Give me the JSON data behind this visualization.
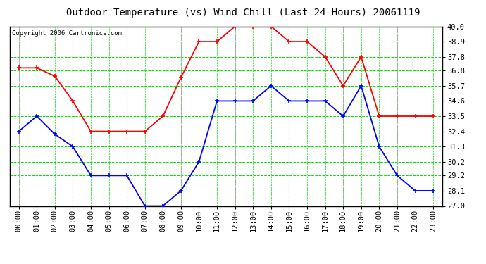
{
  "title": "Outdoor Temperature (vs) Wind Chill (Last 24 Hours) 20061119",
  "copyright": "Copyright 2006 Cartronics.com",
  "hours": [
    "00:00",
    "01:00",
    "02:00",
    "03:00",
    "04:00",
    "05:00",
    "06:00",
    "07:00",
    "08:00",
    "09:00",
    "10:00",
    "11:00",
    "12:00",
    "13:00",
    "14:00",
    "15:00",
    "16:00",
    "17:00",
    "18:00",
    "19:00",
    "20:00",
    "21:00",
    "22:00",
    "23:00"
  ],
  "temp": [
    37.0,
    37.0,
    36.4,
    34.6,
    32.4,
    32.4,
    32.4,
    32.4,
    33.5,
    36.3,
    38.9,
    38.9,
    40.0,
    40.0,
    40.0,
    38.9,
    38.9,
    37.8,
    35.7,
    37.8,
    33.5,
    33.5,
    33.5,
    33.5
  ],
  "windchill": [
    32.4,
    33.5,
    32.2,
    31.3,
    29.2,
    29.2,
    29.2,
    27.0,
    27.0,
    28.1,
    30.2,
    34.6,
    34.6,
    34.6,
    35.7,
    34.6,
    34.6,
    34.6,
    33.5,
    35.7,
    31.3,
    29.2,
    28.1,
    28.1
  ],
  "ylim": [
    27.0,
    40.0
  ],
  "yticks": [
    27.0,
    28.1,
    29.2,
    30.2,
    31.3,
    32.4,
    33.5,
    34.6,
    35.7,
    36.8,
    37.8,
    38.9,
    40.0
  ],
  "temp_color": "#ff0000",
  "windchill_color": "#0000ff",
  "bg_color": "#ffffff",
  "plot_bg_color": "#ffffff",
  "grid_color": "#00dd00",
  "vgrid_color": "#aaaaaa",
  "title_color": "#000000",
  "title_fontsize": 10,
  "copyright_fontsize": 6.5,
  "tick_label_fontsize": 7.5
}
